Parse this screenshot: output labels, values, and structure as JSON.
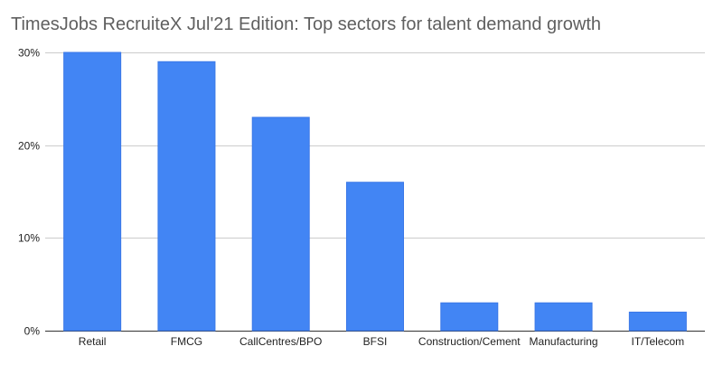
{
  "chart_data": {
    "type": "bar",
    "title": "TimesJobs RecruiteX Jul'21 Edition: Top sectors for talent demand growth",
    "xlabel": "",
    "ylabel": "",
    "categories": [
      "Retail",
      "FMCG",
      "CallCentres/BPO",
      "BFSI",
      "Construction/Cement",
      "Manufacturing",
      "IT/Telecom"
    ],
    "values": [
      30,
      29,
      23,
      16,
      3,
      3,
      2
    ],
    "unit": "%",
    "ylim": [
      0,
      30
    ],
    "yticks": [
      "0%",
      "10%",
      "20%",
      "30%"
    ],
    "ytick_values": [
      0,
      10,
      20,
      30
    ],
    "grid": true,
    "legend": "none",
    "bar_color": "#4285f4",
    "bar_edge_color": "#3b78e7"
  }
}
